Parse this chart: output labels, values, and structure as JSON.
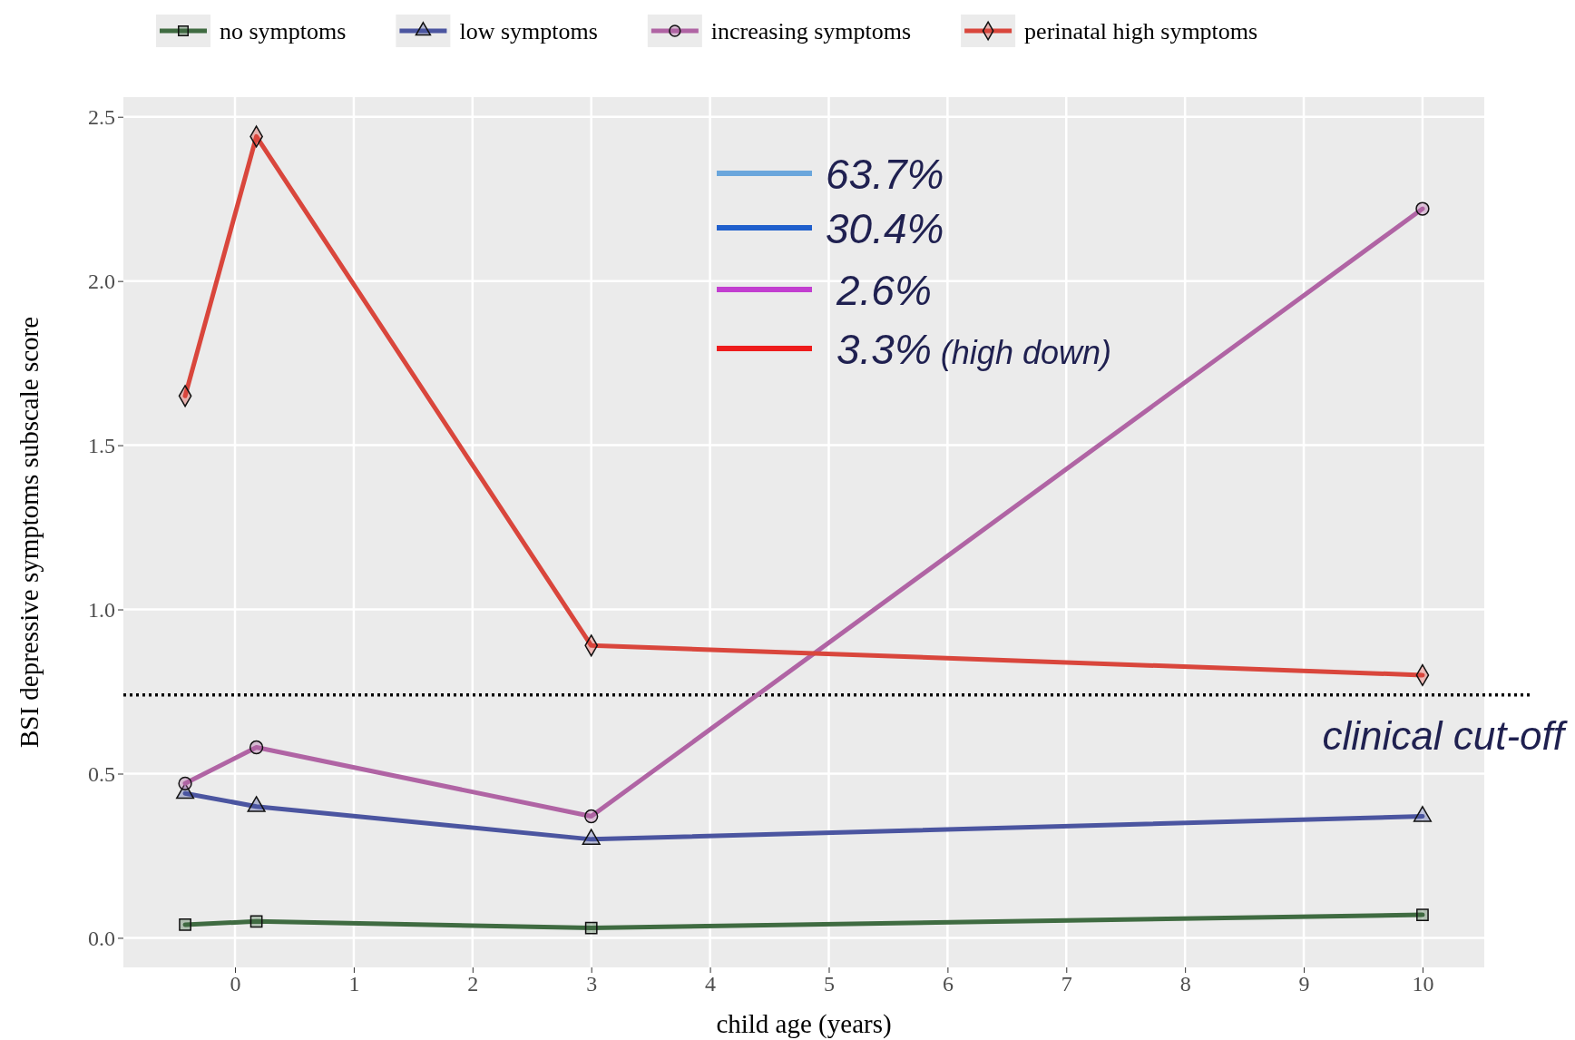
{
  "chart_data": {
    "type": "line",
    "xlabel": "child age (years)",
    "ylabel": "BSI depressive symptoms subscale score",
    "x": [
      -0.42,
      0.18,
      3,
      10
    ],
    "series": [
      {
        "name": "no symptoms",
        "color": "#3f6b41",
        "marker": "square",
        "values": [
          0.04,
          0.05,
          0.03,
          0.07
        ]
      },
      {
        "name": "low symptoms",
        "color": "#4b55a0",
        "marker": "triangle",
        "values": [
          0.44,
          0.4,
          0.3,
          0.37
        ]
      },
      {
        "name": "increasing symptoms",
        "color": "#b064a4",
        "marker": "circle",
        "values": [
          0.47,
          0.58,
          0.37,
          2.22
        ]
      },
      {
        "name": "perinatal high symptoms",
        "color": "#d9463c",
        "marker": "diamond",
        "values": [
          1.65,
          2.44,
          0.89,
          0.8
        ]
      }
    ],
    "xlim": [
      -0.94,
      10.52
    ],
    "xticks": [
      0,
      1,
      2,
      3,
      4,
      5,
      6,
      7,
      8,
      9,
      10
    ],
    "ylim": [
      -0.09,
      2.56
    ],
    "yticks": [
      {
        "value": 0,
        "label": "0.0"
      },
      {
        "value": 0.5,
        "label": "0.5"
      },
      {
        "value": 1,
        "label": "1.0"
      },
      {
        "value": 1.5,
        "label": "1.5"
      },
      {
        "value": 2,
        "label": "2.0"
      },
      {
        "value": 2.5,
        "label": "2.5"
      }
    ],
    "grid": true,
    "legend": "top",
    "ref_lines": [
      {
        "axis": "y",
        "value": 0.74,
        "label": "clinical cut-off",
        "line_style": "dotted",
        "color": "#000000"
      }
    ],
    "annotations": [
      "63.7%",
      "30.4%",
      "2.6%",
      "3.3% (high down)"
    ]
  }
}
